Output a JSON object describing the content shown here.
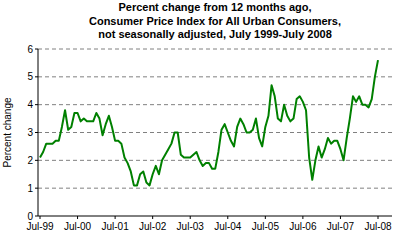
{
  "chart_data": {
    "type": "line",
    "title": [
      "Percent change from 12 months ago,",
      "Consumer Price Index for All Urban Consumers,",
      "not seasonally adjusted, July 1999-July 2008"
    ],
    "y_label": "Percent change",
    "categories": [
      "Jul-99",
      null,
      null,
      null,
      null,
      null,
      null,
      null,
      null,
      null,
      null,
      null,
      "Jul-00",
      null,
      null,
      null,
      null,
      null,
      null,
      null,
      null,
      null,
      null,
      null,
      "Jul-01",
      null,
      null,
      null,
      null,
      null,
      null,
      null,
      null,
      null,
      null,
      null,
      "Jul-02",
      null,
      null,
      null,
      null,
      null,
      null,
      null,
      null,
      null,
      null,
      null,
      "Jul-03",
      null,
      null,
      null,
      null,
      null,
      null,
      null,
      null,
      null,
      null,
      null,
      "Jul-04",
      null,
      null,
      null,
      null,
      null,
      null,
      null,
      null,
      null,
      null,
      null,
      "Jul-05",
      null,
      null,
      null,
      null,
      null,
      null,
      null,
      null,
      null,
      null,
      null,
      "Jul-06",
      null,
      null,
      null,
      null,
      null,
      null,
      null,
      null,
      null,
      null,
      null,
      "Jul-07",
      null,
      null,
      null,
      null,
      null,
      null,
      null,
      null,
      null,
      null,
      null,
      "Jul-08"
    ],
    "values": [
      2.1,
      2.3,
      2.6,
      2.6,
      2.6,
      2.7,
      2.7,
      3.2,
      3.8,
      3.1,
      3.2,
      3.7,
      3.7,
      3.4,
      3.5,
      3.4,
      3.4,
      3.4,
      3.7,
      3.5,
      2.9,
      3.3,
      3.6,
      3.2,
      2.7,
      2.7,
      2.6,
      2.1,
      1.9,
      1.6,
      1.1,
      1.1,
      1.5,
      1.6,
      1.2,
      1.1,
      1.5,
      1.8,
      1.5,
      2.0,
      2.2,
      2.4,
      2.6,
      3.0,
      3.0,
      2.2,
      2.1,
      2.1,
      2.1,
      2.2,
      2.3,
      2.0,
      1.8,
      1.9,
      1.9,
      1.7,
      1.7,
      2.3,
      3.1,
      3.3,
      3.0,
      2.7,
      2.5,
      3.2,
      3.5,
      3.3,
      3.0,
      3.0,
      3.1,
      3.5,
      2.8,
      2.5,
      3.2,
      3.6,
      4.7,
      4.3,
      3.5,
      3.4,
      4.0,
      3.6,
      3.4,
      3.5,
      4.2,
      4.3,
      4.1,
      3.8,
      2.1,
      1.3,
      2.0,
      2.5,
      2.1,
      2.4,
      2.8,
      2.6,
      2.7,
      2.7,
      2.4,
      2.0,
      2.8,
      3.5,
      4.3,
      4.1,
      4.3,
      4.0,
      4.0,
      3.9,
      4.2,
      5.0,
      5.6
    ],
    "color": "#008000",
    "ylim": [
      0,
      6
    ],
    "yticks": [
      0,
      1,
      2,
      3,
      4,
      5,
      6
    ],
    "grid": true
  }
}
